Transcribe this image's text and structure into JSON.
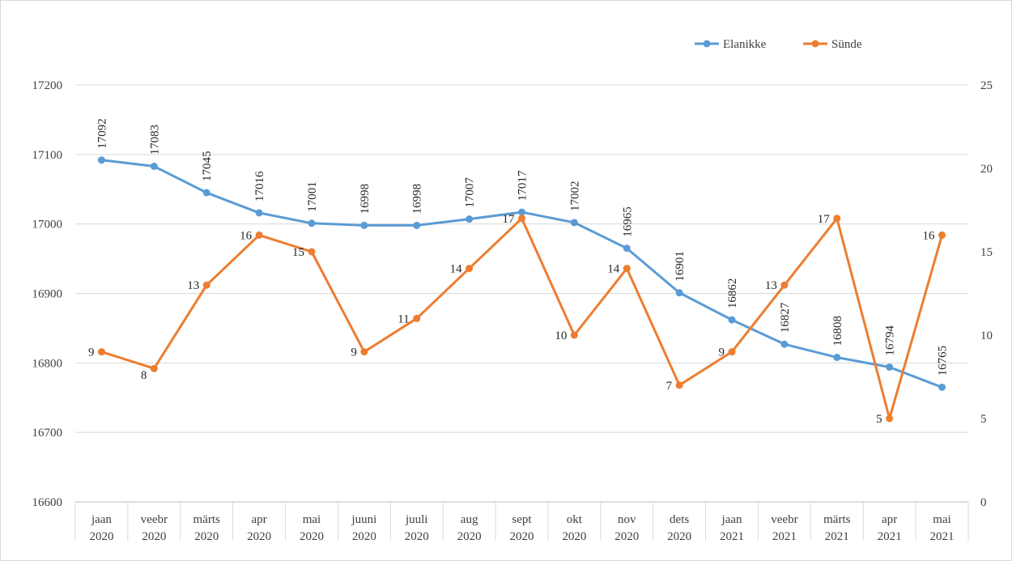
{
  "chart_data": {
    "type": "line",
    "title": "",
    "categories": [
      [
        "jaan",
        "2020"
      ],
      [
        "veebr",
        "2020"
      ],
      [
        "märts",
        "2020"
      ],
      [
        "apr",
        "2020"
      ],
      [
        "mai",
        "2020"
      ],
      [
        "juuni",
        "2020"
      ],
      [
        "juuli",
        "2020"
      ],
      [
        "aug",
        "2020"
      ],
      [
        "sept",
        "2020"
      ],
      [
        "okt",
        "2020"
      ],
      [
        "nov",
        "2020"
      ],
      [
        "dets",
        "2020"
      ],
      [
        "jaan",
        "2021"
      ],
      [
        "veebr",
        "2021"
      ],
      [
        "märts",
        "2021"
      ],
      [
        "apr",
        "2021"
      ],
      [
        "mai",
        "2021"
      ]
    ],
    "series": [
      {
        "name": "Elanikke",
        "axis": "left",
        "color": "#5b9bd5",
        "values": [
          17092,
          17083,
          17045,
          17016,
          17001,
          16998,
          16998,
          17007,
          17017,
          17002,
          16965,
          16901,
          16862,
          16827,
          16808,
          16794,
          16765
        ]
      },
      {
        "name": "Sünde",
        "axis": "right",
        "color": "#ed7d31",
        "values": [
          9,
          8,
          13,
          16,
          15,
          9,
          11,
          14,
          17,
          10,
          14,
          7,
          9,
          13,
          17,
          5,
          16
        ]
      }
    ],
    "y_left": {
      "min": 16600,
      "max": 17200,
      "step": 100
    },
    "y_right": {
      "min": 0,
      "max": 25,
      "step": 5
    },
    "grid": true,
    "legend_position": "top-right"
  }
}
